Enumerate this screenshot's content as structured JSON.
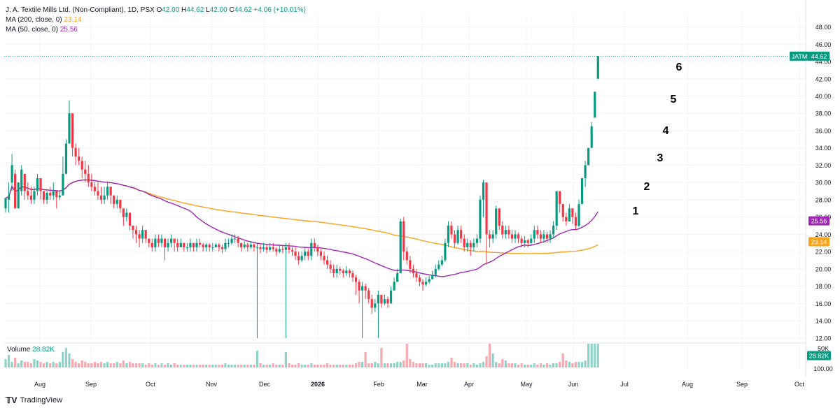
{
  "header": {
    "title": "J. A. Textile Mills Ltd. (Non-Compliant), 1D, PSX",
    "o_label": "O",
    "o": "42.00",
    "h_label": "H",
    "h": "44.62",
    "l_label": "L",
    "l": "42.00",
    "c_label": "C",
    "c": "44.62",
    "change": "+4.06 (+10.01%)",
    "ma200_label": "MA (200, close, 0)",
    "ma200_value": "23.14",
    "ma50_label": "MA (50, close, 0)",
    "ma50_value": "25.56"
  },
  "volume_panel": {
    "label": "Volume",
    "value": "28.82K",
    "axis_ticks": [
      "50K",
      "100.00"
    ],
    "badge": "28.82K"
  },
  "price_badges": {
    "symbol": "JATM",
    "last": "44.62",
    "ma50": "25.56",
    "ma200": "23.14"
  },
  "branding": {
    "text": "TradingView"
  },
  "colors": {
    "up": "#089981",
    "down": "#f23645",
    "ma200": "#f7a21b",
    "ma50": "#9c27b0",
    "up_vol": "#8fd3c8",
    "down_vol": "#f7a9b0"
  },
  "chart_data": {
    "type": "candlestick",
    "ylim": [
      11.5,
      49.5
    ],
    "y_ticks": [
      "12.00",
      "14.00",
      "16.00",
      "18.00",
      "20.00",
      "22.00",
      "24.00",
      "26.00",
      "28.00",
      "30.00",
      "32.00",
      "34.00",
      "36.00",
      "38.00",
      "40.00",
      "42.00",
      "44.00",
      "46.00",
      "48.00"
    ],
    "x_ticks": [
      "Aug",
      "Sep",
      "Oct",
      "Nov",
      "Dec",
      "2026",
      "Feb",
      "Mar",
      "Apr",
      "May",
      "Jun",
      "Jul",
      "Aug",
      "Sep",
      "Oct"
    ],
    "wave_labels": [
      "1",
      "2",
      "3",
      "4",
      "5",
      "6"
    ],
    "candles": [
      [
        27,
        28.2,
        27.5,
        26.5
      ],
      [
        28,
        28.5,
        30,
        26.5
      ],
      [
        30,
        32,
        33.3,
        29
      ],
      [
        31,
        27,
        31.5,
        27
      ],
      [
        27,
        30,
        30,
        27
      ],
      [
        29,
        31.5,
        32,
        28.5
      ],
      [
        31,
        29,
        31,
        28
      ],
      [
        29,
        28.5,
        30,
        28
      ],
      [
        28.5,
        28,
        29.5,
        27.5
      ],
      [
        28,
        29,
        29.5,
        27.5
      ],
      [
        29,
        30.5,
        31,
        28.5
      ],
      [
        30.5,
        29,
        30.5,
        28
      ],
      [
        29,
        28,
        29,
        27.5
      ],
      [
        28,
        28.8,
        29,
        27.5
      ],
      [
        28.8,
        28.5,
        29.5,
        28
      ],
      [
        28.5,
        29,
        30,
        28
      ],
      [
        29,
        28.3,
        29,
        27
      ],
      [
        28.3,
        28.5,
        29,
        28
      ],
      [
        28.5,
        31,
        33,
        28.5
      ],
      [
        31,
        34.5,
        35,
        31
      ],
      [
        34.5,
        38,
        39.5,
        35
      ],
      [
        38,
        34,
        36,
        33
      ],
      [
        34,
        33,
        34.5,
        32
      ],
      [
        33,
        32.5,
        34,
        32
      ],
      [
        32.5,
        31.5,
        33,
        30.5
      ],
      [
        31.5,
        31,
        32.5,
        30
      ],
      [
        31,
        30,
        32,
        29.5
      ],
      [
        30,
        29.5,
        31,
        29
      ],
      [
        29.5,
        29,
        30,
        28.5
      ],
      [
        29,
        28.5,
        30,
        28
      ],
      [
        28.5,
        28,
        29.5,
        27.5
      ],
      [
        28,
        28.5,
        29.5,
        27.5
      ],
      [
        28.5,
        29.5,
        30,
        28
      ],
      [
        29.5,
        28.5,
        29.5,
        27.5
      ],
      [
        28.5,
        27.5,
        28.5,
        27
      ],
      [
        27.5,
        28,
        28.5,
        27
      ],
      [
        28,
        27,
        28,
        26.5
      ],
      [
        27,
        26,
        27,
        25
      ],
      [
        26,
        26.5,
        27,
        25.5
      ],
      [
        26.5,
        25,
        26.5,
        24.5
      ],
      [
        25,
        24.5,
        25,
        23.5
      ],
      [
        24.5,
        24,
        25,
        23
      ],
      [
        24,
        23.5,
        24.5,
        22.5
      ],
      [
        23.5,
        24.5,
        25,
        23
      ],
      [
        24.5,
        23.5,
        24.5,
        23
      ],
      [
        23.5,
        23,
        23.5,
        22.5
      ],
      [
        23,
        22.5,
        23.5,
        22
      ],
      [
        22.5,
        23.5,
        24,
        22
      ],
      [
        23.5,
        23,
        24,
        22.5
      ],
      [
        23,
        23.5,
        24,
        22.5
      ],
      [
        23.5,
        22.5,
        23.5,
        21
      ],
      [
        22.5,
        23,
        23.5,
        22
      ],
      [
        23,
        23.5,
        24,
        22.5
      ],
      [
        23.5,
        23,
        23.5,
        22
      ],
      [
        23,
        22.5,
        23.5,
        22
      ],
      [
        22.5,
        23,
        23.5,
        22.5
      ],
      [
        23,
        22.5,
        23,
        22
      ],
      [
        22.5,
        22.5,
        23,
        22
      ],
      [
        22.5,
        23,
        23.5,
        22
      ],
      [
        23,
        22.5,
        23,
        22
      ],
      [
        22.5,
        23,
        23.5,
        22
      ],
      [
        23,
        22.8,
        23.5,
        22.5
      ],
      [
        22.8,
        22.5,
        23,
        22
      ],
      [
        22.5,
        22.8,
        23,
        22
      ],
      [
        22.8,
        22.5,
        23,
        22
      ],
      [
        22.5,
        22.5,
        23,
        22
      ],
      [
        22.5,
        22.8,
        23,
        22.5
      ],
      [
        22.8,
        22.5,
        23,
        22
      ],
      [
        22.5,
        22.3,
        22.8,
        21.8
      ],
      [
        22.3,
        23,
        23.5,
        22
      ],
      [
        23,
        23,
        23.5,
        22.5
      ],
      [
        23,
        23.5,
        24,
        22.8
      ],
      [
        23.5,
        23.5,
        24,
        23
      ],
      [
        23.5,
        23,
        23.8,
        22.5
      ],
      [
        23,
        22.5,
        23,
        22
      ],
      [
        22.5,
        22.8,
        23.2,
        22.3
      ],
      [
        22.8,
        22.5,
        23,
        22
      ],
      [
        22.5,
        22.8,
        23.2,
        22.3
      ],
      [
        22.8,
        22.5,
        23,
        22
      ],
      [
        22.5,
        22.5,
        23,
        12
      ],
      [
        22.5,
        22.3,
        22.8,
        21.8
      ],
      [
        22.3,
        22.5,
        23,
        22
      ],
      [
        22.5,
        22.2,
        22.8,
        21.8
      ],
      [
        22.2,
        22.5,
        23,
        22
      ],
      [
        22.5,
        22.3,
        23,
        22
      ],
      [
        22.3,
        22,
        22.5,
        21.5
      ],
      [
        22,
        22.3,
        22.8,
        21.8
      ],
      [
        22.3,
        22.2,
        22.8,
        21.8
      ],
      [
        22.2,
        22.5,
        23,
        12
      ],
      [
        22.5,
        22.2,
        23,
        21.8
      ],
      [
        22.2,
        22,
        22.5,
        21.5
      ],
      [
        22,
        21.5,
        22.5,
        21
      ],
      [
        21.5,
        21,
        22,
        20.5
      ],
      [
        21,
        21.5,
        22,
        20.8
      ],
      [
        21.5,
        22,
        22.5,
        21
      ],
      [
        22,
        21.5,
        22.3,
        21
      ],
      [
        21.5,
        23,
        23.5,
        21
      ],
      [
        23,
        22.5,
        23.5,
        22
      ],
      [
        22.5,
        22,
        22.8,
        21.5
      ],
      [
        22,
        21.5,
        22.3,
        21
      ],
      [
        21.5,
        21,
        22,
        20.5
      ],
      [
        21,
        20.5,
        21.5,
        20
      ],
      [
        20.5,
        20,
        21,
        19.5
      ],
      [
        20,
        19.5,
        20.5,
        19
      ],
      [
        19.5,
        20,
        20.5,
        19
      ],
      [
        20,
        19.8,
        20.3,
        19.3
      ],
      [
        19.8,
        19.5,
        20,
        19
      ],
      [
        19.5,
        19.8,
        20.3,
        19.2
      ],
      [
        19.8,
        19.5,
        20,
        19
      ],
      [
        19.5,
        19,
        19.8,
        18.5
      ],
      [
        19,
        18.5,
        19.3,
        17
      ],
      [
        18.5,
        17.5,
        18.8,
        16
      ],
      [
        17.5,
        18,
        18.5,
        12
      ],
      [
        18,
        17.5,
        18.3,
        16.5
      ],
      [
        17.5,
        16.5,
        17.8,
        16
      ],
      [
        16.5,
        15.5,
        17,
        14.8
      ],
      [
        15.5,
        16,
        16.5,
        15
      ],
      [
        16,
        17,
        17.5,
        12
      ],
      [
        17,
        16,
        17,
        15.5
      ],
      [
        16,
        16.5,
        17,
        15.8
      ],
      [
        16.5,
        16,
        16.8,
        15.5
      ],
      [
        16,
        17.5,
        18,
        16
      ],
      [
        17.5,
        18.5,
        19,
        17.5
      ],
      [
        18.5,
        19.5,
        20,
        18.5
      ],
      [
        19.5,
        25.5,
        25.8,
        19.5
      ],
      [
        25.5,
        22,
        26,
        21
      ],
      [
        22,
        21,
        22.5,
        20.5
      ],
      [
        21,
        20,
        21.5,
        19.5
      ],
      [
        20,
        19.5,
        20.5,
        19
      ],
      [
        19.5,
        19,
        20,
        18.5
      ],
      [
        19,
        18.5,
        19.3,
        18
      ],
      [
        18.5,
        18.2,
        18.8,
        17.5
      ],
      [
        18.2,
        18.5,
        19,
        18
      ],
      [
        18.5,
        18.8,
        19.2,
        18.3
      ],
      [
        18.8,
        19.3,
        19.8,
        18.8
      ],
      [
        19.3,
        20,
        20.5,
        19
      ],
      [
        20,
        20.5,
        21,
        19.8
      ],
      [
        20.5,
        21,
        21.5,
        20.3
      ],
      [
        21,
        23,
        23.5,
        20.8
      ],
      [
        23,
        25,
        25.5,
        22.5
      ],
      [
        25,
        24,
        25.5,
        23.5
      ],
      [
        24,
        23,
        24.5,
        22.5
      ],
      [
        23,
        24.5,
        25,
        22.8
      ],
      [
        24.5,
        23.5,
        25,
        23
      ],
      [
        23.5,
        22.5,
        24,
        22
      ],
      [
        22.5,
        23,
        23.5,
        22
      ],
      [
        23,
        22.5,
        23.3,
        21.5
      ],
      [
        22.5,
        23,
        23.5,
        22
      ],
      [
        23,
        23.5,
        24,
        22.5
      ],
      [
        23.5,
        28,
        28.5,
        23
      ],
      [
        28,
        30,
        30.3,
        26
      ],
      [
        30,
        24,
        30,
        20.5
      ],
      [
        24,
        23.5,
        24.5,
        22.5
      ],
      [
        23.5,
        24,
        24.5,
        23
      ],
      [
        24,
        27,
        27.3,
        23.5
      ],
      [
        27,
        25,
        27,
        24.5
      ],
      [
        25,
        24,
        25.5,
        23.5
      ],
      [
        24,
        24.5,
        25,
        23.5
      ],
      [
        24.5,
        24,
        25,
        23.5
      ],
      [
        24,
        23.5,
        24.5,
        23
      ],
      [
        23.5,
        24,
        24.5,
        23
      ],
      [
        24,
        23.5,
        24.2,
        23
      ],
      [
        23.5,
        23,
        23.8,
        22.5
      ],
      [
        23,
        23.3,
        23.8,
        22.5
      ],
      [
        23.3,
        23,
        23.5,
        22.5
      ],
      [
        23,
        23.5,
        24,
        22.8
      ],
      [
        23.5,
        24.5,
        25,
        23
      ],
      [
        24.5,
        24,
        25,
        23.5
      ],
      [
        24,
        23.5,
        24.5,
        23
      ],
      [
        23.5,
        24,
        24.5,
        23
      ],
      [
        24,
        23.5,
        24.3,
        23
      ],
      [
        23.5,
        24,
        24.5,
        23
      ],
      [
        24,
        25,
        25.5,
        23.5
      ],
      [
        25,
        29,
        29,
        24.5
      ],
      [
        29,
        27.5,
        29,
        26.5
      ],
      [
        27.5,
        26,
        27.5,
        25.5
      ],
      [
        26,
        25.5,
        26.5,
        25
      ],
      [
        25.5,
        27,
        27.5,
        25.5
      ],
      [
        27,
        26,
        27,
        25.2
      ],
      [
        26,
        25,
        26.5,
        24.5
      ],
      [
        25,
        27.5,
        28,
        24.8
      ],
      [
        27.5,
        30.5,
        30.5,
        29
      ],
      [
        30.5,
        32,
        32.5,
        29.5
      ],
      [
        32,
        34,
        34,
        32
      ],
      [
        34,
        36.5,
        37,
        34
      ],
      [
        37.5,
        40.5,
        40.5,
        39
      ],
      [
        42,
        44.62,
        44.62,
        42
      ]
    ],
    "volume": [
      6,
      9,
      4,
      7,
      3,
      5,
      4,
      4,
      3,
      6,
      5,
      4,
      3,
      4,
      3,
      4,
      3,
      4,
      11,
      14,
      10,
      6,
      4,
      3,
      5,
      4,
      3,
      3,
      4,
      3,
      4,
      3,
      4,
      3,
      3,
      4,
      3,
      5,
      3,
      4,
      3,
      3,
      3,
      3,
      2,
      3,
      2,
      3,
      2,
      3,
      2,
      3,
      2,
      3,
      2,
      2,
      2,
      2,
      2,
      2,
      2,
      2,
      2,
      2,
      2,
      2,
      2,
      2,
      2,
      3,
      2,
      2,
      2,
      2,
      2,
      2,
      2,
      2,
      2,
      12,
      3,
      2,
      2,
      2,
      3,
      2,
      2,
      2,
      11,
      3,
      2,
      2,
      3,
      2,
      2,
      2,
      3,
      2,
      2,
      2,
      2,
      3,
      2,
      2,
      2,
      2,
      2,
      2,
      2,
      2,
      3,
      4,
      4,
      11,
      3,
      3,
      4,
      3,
      14,
      3,
      3,
      3,
      3,
      4,
      4,
      5,
      17,
      6,
      4,
      3,
      3,
      3,
      3,
      2,
      2,
      3,
      3,
      3,
      3,
      4,
      7,
      4,
      3,
      3,
      3,
      3,
      2,
      3,
      2,
      3,
      4,
      8,
      17,
      10,
      4,
      3,
      6,
      5,
      3,
      3,
      3,
      2,
      3,
      2,
      2,
      2,
      3,
      2,
      3,
      2,
      3,
      2,
      3,
      3,
      4,
      10,
      5,
      4,
      3,
      4,
      4,
      4,
      5,
      17,
      17,
      17,
      17,
      17,
      8
    ]
  }
}
